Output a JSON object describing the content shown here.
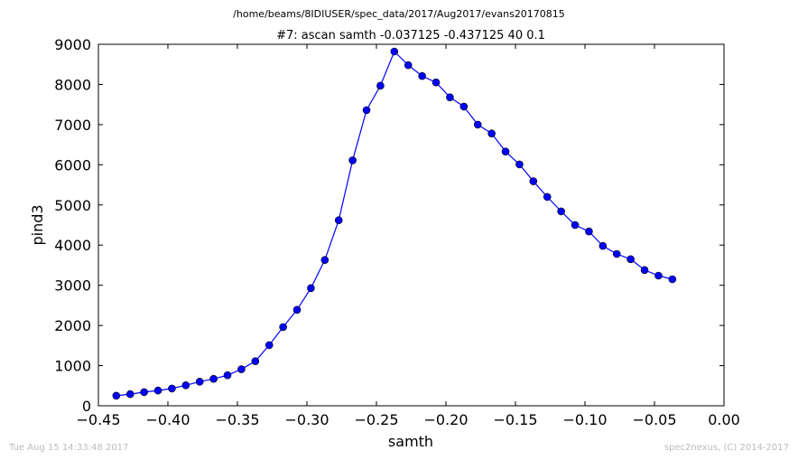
{
  "figure": {
    "supertitle": "/home/beams/8IDIUSER/spec_data/2017/Aug2017/evans20170815",
    "timestamp": "Tue Aug 15 14:33:48 2017",
    "credit": "spec2nexus, (C) 2014-2017"
  },
  "chart_data": {
    "type": "line",
    "title": "#7: ascan  samth -0.037125 -0.437125  40 0.1",
    "xlabel": "samth",
    "ylabel": "pind3",
    "xlim": [
      -0.45,
      0.0
    ],
    "ylim": [
      0,
      9000
    ],
    "xticks": [
      -0.45,
      -0.4,
      -0.35,
      -0.3,
      -0.25,
      -0.2,
      -0.15,
      -0.1,
      -0.05,
      0.0
    ],
    "xtick_labels": [
      "−0.45",
      "−0.40",
      "−0.35",
      "−0.30",
      "−0.25",
      "−0.20",
      "−0.15",
      "−0.10",
      "−0.05",
      "0.00"
    ],
    "yticks": [
      0,
      1000,
      2000,
      3000,
      4000,
      5000,
      6000,
      7000,
      8000,
      9000
    ],
    "ytick_labels": [
      "0",
      "1000",
      "2000",
      "3000",
      "4000",
      "5000",
      "6000",
      "7000",
      "8000",
      "9000"
    ],
    "grid": false,
    "line_color": "#0000ff",
    "marker_color": "#0000ff",
    "x": [
      -0.437125,
      -0.427125,
      -0.417125,
      -0.407125,
      -0.397125,
      -0.387125,
      -0.377125,
      -0.367125,
      -0.357125,
      -0.347125,
      -0.337125,
      -0.327125,
      -0.317125,
      -0.307125,
      -0.297125,
      -0.287125,
      -0.277125,
      -0.267125,
      -0.257125,
      -0.247125,
      -0.237125,
      -0.227125,
      -0.217125,
      -0.207125,
      -0.197125,
      -0.187125,
      -0.177125,
      -0.167125,
      -0.157125,
      -0.147125,
      -0.137125,
      -0.127125,
      -0.117125,
      -0.107125,
      -0.097125,
      -0.087125,
      -0.077125,
      -0.067125,
      -0.057125,
      -0.047125,
      -0.037125
    ],
    "y": [
      250,
      290,
      340,
      380,
      430,
      510,
      600,
      670,
      760,
      910,
      1110,
      1510,
      1960,
      2390,
      2930,
      3630,
      4620,
      6110,
      7360,
      7970,
      8820,
      8480,
      8210,
      8050,
      7680,
      7450,
      7000,
      6780,
      6330,
      6010,
      5590,
      5200,
      4840,
      4500,
      4340,
      3980,
      3780,
      3650,
      3380,
      3240,
      3150
    ]
  }
}
